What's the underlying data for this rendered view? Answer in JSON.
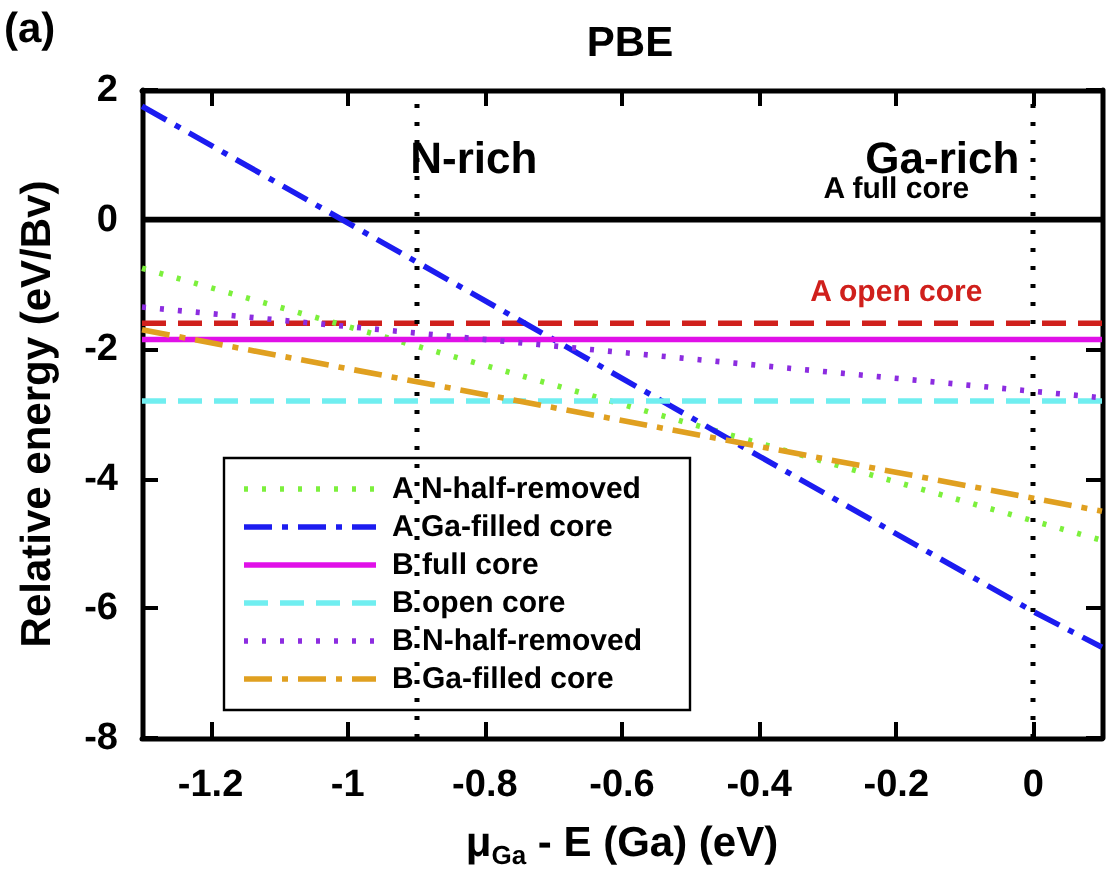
{
  "chart_data": {
    "type": "line",
    "title": "PBE",
    "xlabel": "μ$_{Ga}$ - E (Ga) (eV)",
    "ylabel": "Relative energy (eV/Bv)",
    "annotations": [
      "(a)",
      {
        "text": "A full core",
        "x": -0.2,
        "y": 0
      },
      {
        "text": "A open core",
        "x": -0.2,
        "y": -1.6
      }
    ],
    "xlim": [
      -1.3,
      0.1
    ],
    "xticks": [
      -1.2,
      -1,
      -0.8,
      -0.6,
      -0.4,
      -0.2,
      0
    ],
    "ylim": [
      -8,
      2
    ],
    "yticks": [
      -8,
      -6,
      -4,
      -2,
      0,
      2
    ],
    "grid": false,
    "legend": "bottom left",
    "marker": "none",
    "ref_lines": [
      {
        "axis": "x",
        "value": -0.9,
        "label": "N-rich",
        "color": "#000000",
        "line_style": "dotted"
      },
      {
        "axis": "x",
        "value": 0,
        "label": "Ga-rich",
        "color": "#000000",
        "line_style": "dotted"
      }
    ],
    "series": [
      {
        "color": "#000000",
        "x": [
          -1.3,
          0.1
        ],
        "values": [
          0,
          0
        ],
        "line_style": "solid"
      },
      {
        "color": "#d0201c",
        "x": [
          -1.3,
          0.1
        ],
        "values": [
          -1.6,
          -1.6
        ],
        "line_style": "dashed"
      },
      {
        "name": "A N-half-removed",
        "color": "#7cf03c",
        "x": [
          -1.3,
          0,
          0.1
        ],
        "values": [
          -0.75,
          -4.65,
          -4.95
        ],
        "line_style": "dotted"
      },
      {
        "name": "A Ga-filled core",
        "color": "#1c1cf0",
        "x": [
          -1.3,
          0,
          0.1
        ],
        "values": [
          1.75,
          -6.05,
          -6.6
        ],
        "line_style": "dashdot"
      },
      {
        "name": "B full core",
        "color": "#e010e8",
        "x": [
          -1.3,
          0.1
        ],
        "values": [
          -1.85,
          -1.85
        ],
        "line_style": "solid"
      },
      {
        "name": "B open core",
        "color": "#70eef0",
        "x": [
          -1.3,
          0.1
        ],
        "values": [
          -2.8,
          -2.8
        ],
        "line_style": "dashed"
      },
      {
        "name": "B N-half-removed",
        "color": "#8c2ce0",
        "x": [
          -1.3,
          0,
          0.1
        ],
        "values": [
          -1.35,
          -2.65,
          -2.75
        ],
        "line_style": "dotted"
      },
      {
        "name": "B Ga-filled core",
        "color": "#e0a020",
        "x": [
          -1.3,
          0,
          0.1
        ],
        "values": [
          -1.7,
          -4.3,
          -4.5
        ],
        "line_style": "dashdot"
      }
    ]
  }
}
